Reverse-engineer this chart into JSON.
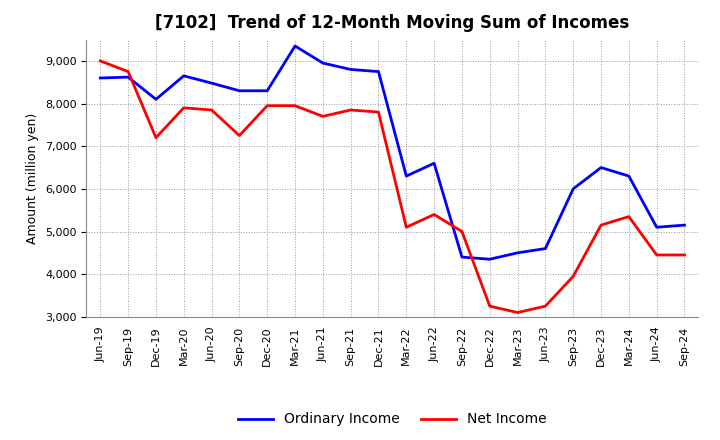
{
  "title": "[7102]  Trend of 12-Month Moving Sum of Incomes",
  "ylabel": "Amount (million yen)",
  "ylim": [
    3000,
    9500
  ],
  "yticks": [
    3000,
    4000,
    5000,
    6000,
    7000,
    8000,
    9000
  ],
  "x_labels": [
    "Jun-19",
    "Sep-19",
    "Dec-19",
    "Mar-20",
    "Jun-20",
    "Sep-20",
    "Dec-20",
    "Mar-21",
    "Jun-21",
    "Sep-21",
    "Dec-21",
    "Mar-22",
    "Jun-22",
    "Sep-22",
    "Dec-22",
    "Mar-23",
    "Jun-23",
    "Sep-23",
    "Dec-23",
    "Mar-24",
    "Jun-24",
    "Sep-24"
  ],
  "ordinary_income": [
    8600,
    8620,
    8100,
    8650,
    8480,
    8300,
    8300,
    9350,
    8950,
    8800,
    8750,
    6300,
    6600,
    4400,
    4350,
    4500,
    4600,
    6000,
    6500,
    6300,
    5100,
    5150
  ],
  "net_income": [
    9000,
    8750,
    7200,
    7900,
    7850,
    7250,
    7950,
    7950,
    7700,
    7850,
    7800,
    5100,
    5400,
    5000,
    3250,
    3100,
    3250,
    3950,
    5150,
    5350,
    4450,
    4450
  ],
  "ordinary_color": "#0000FF",
  "net_color": "#FF0000",
  "line_width": 2.0,
  "background_color": "#FFFFFF",
  "plot_bg_color": "#FFFFFF",
  "grid_color": "#999999",
  "title_fontsize": 12,
  "label_fontsize": 9,
  "tick_fontsize": 8,
  "legend_fontsize": 10
}
